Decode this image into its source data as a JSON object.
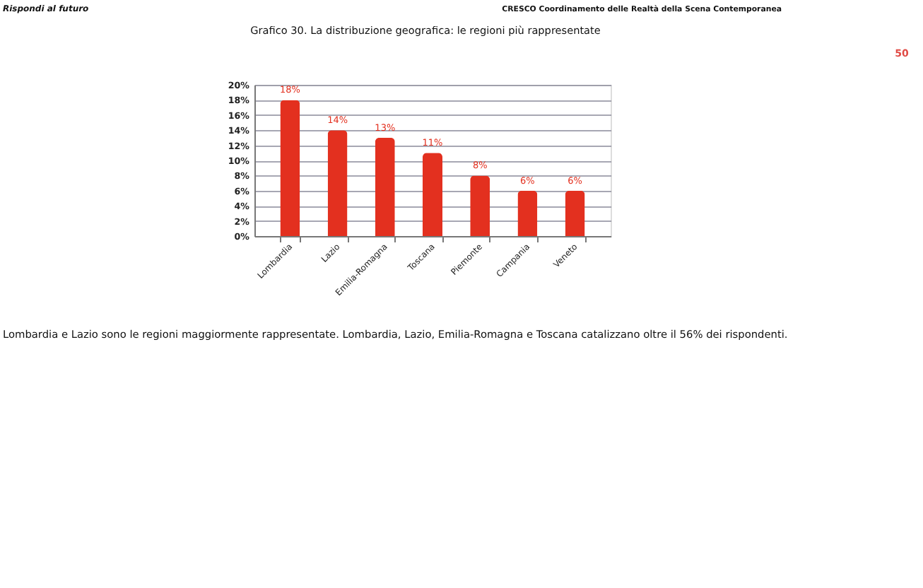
{
  "chart_data": {
    "type": "bar",
    "title": "Grafico 30. La distribuzione geografica: le regioni più rappresentate",
    "categories": [
      "Lombardia",
      "Lazio",
      "Emilia-Romagna",
      "Toscana",
      "Piemonte",
      "Campania",
      "Veneto"
    ],
    "values": [
      18,
      14,
      13,
      11,
      8,
      6,
      6
    ],
    "value_labels": [
      "18%",
      "14%",
      "13%",
      "11%",
      "8%",
      "6%",
      "6%"
    ],
    "color": "#e3301f",
    "ylim": [
      0,
      20
    ],
    "yticks": [
      {
        "value": 0,
        "label": "0%"
      },
      {
        "value": 2,
        "label": "2%"
      },
      {
        "value": 4,
        "label": "4%"
      },
      {
        "value": 6,
        "label": "6%"
      },
      {
        "value": 8,
        "label": "8%"
      },
      {
        "value": 10,
        "label": "10%"
      },
      {
        "value": 12,
        "label": "12%"
      },
      {
        "value": 14,
        "label": "14%"
      },
      {
        "value": 16,
        "label": "16%"
      },
      {
        "value": 18,
        "label": "18%"
      },
      {
        "value": 20,
        "label": "20%"
      }
    ],
    "grid": "y",
    "annotations": [
      "Rispondi al futuro",
      "CRESCO Coordinamento delle Realtà della Scena Contemporanea",
      "50",
      "Lombardia e Lazio sono le regioni maggiormente rappresentate. Lombardia, Lazio, Emilia-Romagna e Toscana catalizzano oltre il 56% dei rispondenti."
    ]
  }
}
